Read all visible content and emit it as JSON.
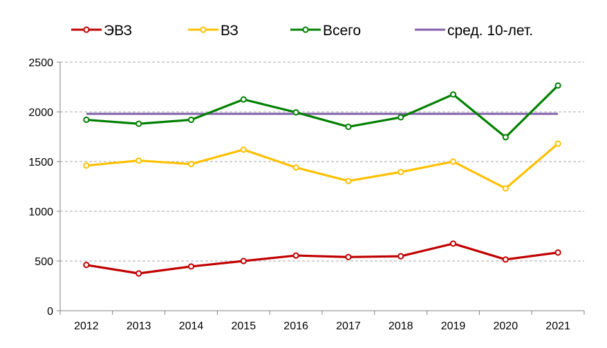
{
  "chart_data": {
    "type": "line",
    "title": "",
    "xlabel": "",
    "ylabel": "",
    "categories": [
      "2012",
      "2013",
      "2014",
      "2015",
      "2016",
      "2017",
      "2018",
      "2019",
      "2020",
      "2021"
    ],
    "ylim": [
      0,
      2500
    ],
    "yticks": [
      0,
      500,
      1000,
      1500,
      2000,
      2500
    ],
    "grid": "horizontal dashed",
    "legend_position": "top",
    "series": [
      {
        "name": "ЭВЗ",
        "color": "#c00000",
        "marker": "circle",
        "values": [
          460,
          375,
          445,
          500,
          555,
          540,
          548,
          675,
          515,
          585
        ]
      },
      {
        "name": "ВЗ",
        "color": "#ffc000",
        "marker": "circle",
        "values": [
          1460,
          1510,
          1475,
          1620,
          1440,
          1305,
          1395,
          1500,
          1230,
          1680
        ]
      },
      {
        "name": "Всего",
        "color": "#008000",
        "marker": "circle",
        "values": [
          1920,
          1880,
          1920,
          2125,
          1995,
          1850,
          1945,
          2175,
          1745,
          2265
        ]
      },
      {
        "name": "сред. 10-лет.",
        "color": "#7f5fa8",
        "marker": "none",
        "values": [
          1980,
          1980,
          1980,
          1980,
          1980,
          1980,
          1980,
          1980,
          1980,
          1980
        ]
      }
    ]
  }
}
